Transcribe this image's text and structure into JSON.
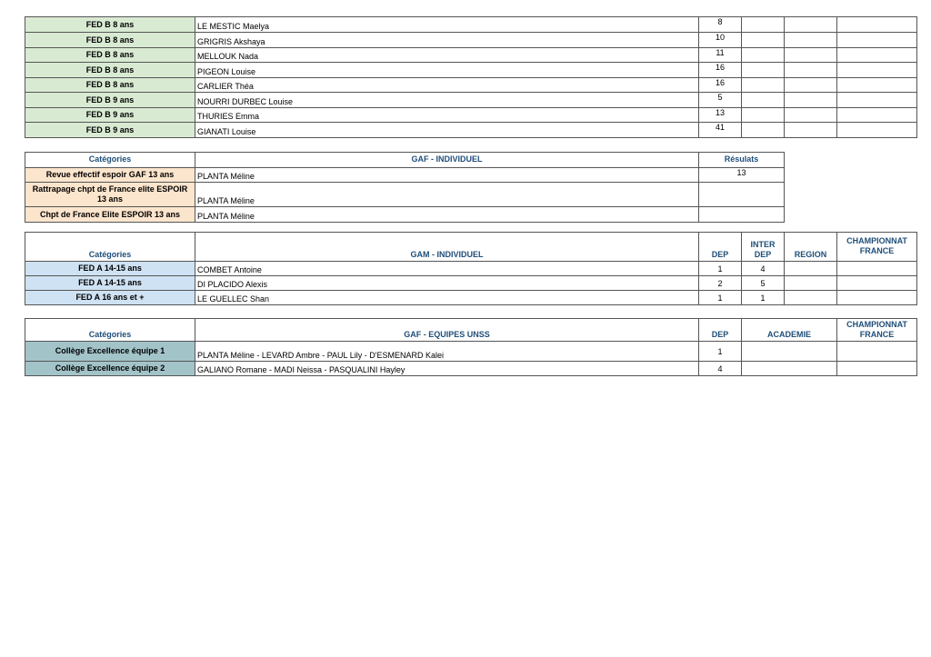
{
  "colors": {
    "fed_b": "#d9ead3",
    "gaf_ind": "#fce5cd",
    "gam_ind": "#cfe2f3",
    "unss": "#a2c4c9",
    "header_text": "#1f4e79"
  },
  "table_fed_b": {
    "rows": [
      {
        "category": "FED B 8 ans",
        "name": "LE MESTIC Maelya",
        "dep": "8"
      },
      {
        "category": "FED B 8 ans",
        "name": "GRIGRIS Akshaya",
        "dep": "10"
      },
      {
        "category": "FED B 8 ans",
        "name": "MELLOUK Nada",
        "dep": "11"
      },
      {
        "category": "FED B 8 ans",
        "name": "PIGEON Louise",
        "dep": "16"
      },
      {
        "category": "FED B 8 ans",
        "name": "CARLIER Théa",
        "dep": "16"
      },
      {
        "category": "FED B 9 ans",
        "name": "NOURRI DURBEC Louise",
        "dep": "5"
      },
      {
        "category": "FED B 9 ans",
        "name": "THURIES Emma",
        "dep": "13"
      },
      {
        "category": "FED B 9 ans",
        "name": "GIANATI Louise",
        "dep": "41"
      }
    ]
  },
  "table_gaf_individuel": {
    "headers": [
      "Catégories",
      "GAF - INDIVIDUEL",
      "Résulats"
    ],
    "rows": [
      {
        "category": "Revue effectif espoir GAF 13 ans",
        "name": "PLANTA Méline",
        "result": "13"
      },
      {
        "category": "Rattrapage chpt de France elite ESPOIR 13 ans",
        "name": "PLANTA Méline",
        "result": ""
      },
      {
        "category": "Chpt de France Elite ESPOIR 13 ans",
        "name": "PLANTA Méline",
        "result": ""
      }
    ]
  },
  "table_gam_individuel": {
    "headers": [
      "Catégories",
      "GAM - INDIVIDUEL",
      "DEP",
      "INTER DEP",
      "REGION",
      "CHAMPIONNAT FRANCE"
    ],
    "rows": [
      {
        "category": "FED A 14-15 ans",
        "name": "COMBET Antoine",
        "dep": "1",
        "inter_dep": "4"
      },
      {
        "category": "FED A 14-15 ans",
        "name": "DI PLACIDO Alexis",
        "dep": "2",
        "inter_dep": "5"
      },
      {
        "category": "FED A 16 ans et +",
        "name": "LE GUELLEC Shan",
        "dep": "1",
        "inter_dep": "1"
      }
    ]
  },
  "table_gaf_equipes_unss": {
    "headers": [
      "Catégories",
      "GAF - EQUIPES UNSS",
      "DEP",
      "ACADEMIE",
      "CHAMPIONNAT FRANCE"
    ],
    "rows": [
      {
        "category": "Collège Excellence équipe 1",
        "name": "PLANTA Méline - LEVARD Ambre - PAUL Lily - D'ESMENARD Kalei",
        "dep": "1"
      },
      {
        "category": "Collège Excellence équipe 2",
        "name": "GALIANO Romane - MADI Neissa - PASQUALINI Hayley",
        "dep": "4"
      }
    ]
  }
}
